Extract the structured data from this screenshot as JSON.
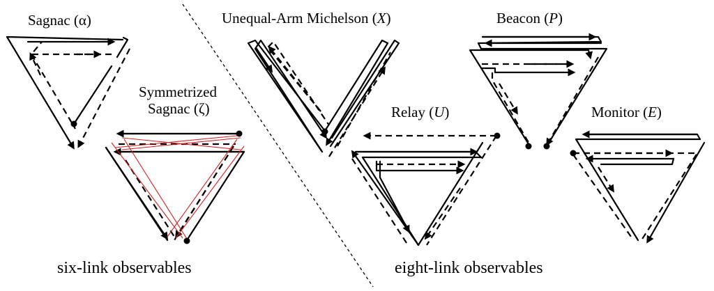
{
  "labels": {
    "sagnac_prefix": "Sagnac (",
    "sagnac_symbol": "α",
    "sagnac_suffix": ")",
    "sym_line1": "Symmetrized",
    "sym_prefix": "Sagnac (",
    "sym_symbol": "ζ",
    "sym_suffix": ")",
    "michelson_prefix": "Unequal-Arm Michelson (",
    "michelson_symbol": "X",
    "michelson_suffix": ")",
    "beacon_prefix": "Beacon (",
    "beacon_symbol": "P",
    "beacon_suffix": ")",
    "relay_prefix": "Relay (",
    "relay_symbol": "U",
    "relay_suffix": ")",
    "monitor_prefix": "Monitor (",
    "monitor_symbol": "E",
    "monitor_suffix": ")"
  },
  "captions": {
    "six_link": "six-link observables",
    "eight_link": "eight-link observables"
  },
  "colors": {
    "lines": "#000000",
    "accent_red": "#d42020",
    "background": "#ffffff"
  }
}
